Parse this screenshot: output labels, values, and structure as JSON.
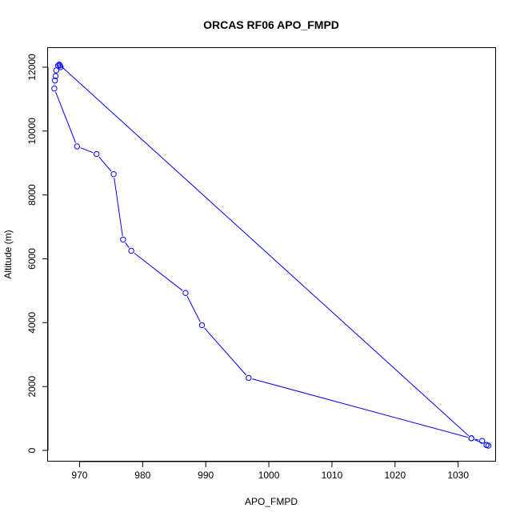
{
  "chart_data": {
    "type": "line",
    "title": "ORCAS RF06 APO_FMPD",
    "xlabel": "APO_FMPD",
    "ylabel": "Altitude (m)",
    "xlim": [
      965,
      1036
    ],
    "ylim": [
      -350,
      12600
    ],
    "xticks": [
      970,
      980,
      990,
      1000,
      1010,
      1020,
      1030
    ],
    "yticks": [
      0,
      2000,
      4000,
      6000,
      8000,
      10000,
      12000
    ],
    "xtick_labels": [
      "970",
      "980",
      "990",
      "1000",
      "1010",
      "1020",
      "1030"
    ],
    "ytick_labels": [
      "0",
      "2000",
      "4000",
      "6000",
      "8000",
      "10000",
      "12000"
    ],
    "grid": false,
    "series": [
      {
        "color": "#0000ff",
        "marker": "open-circle",
        "x": [
          1034.8,
          1034.5,
          1033.8,
          1032.1,
          996.8,
          989.4,
          986.8,
          978.2,
          976.9,
          975.4,
          972.7,
          969.6,
          966.0,
          966.1,
          966.2,
          966.3,
          966.6,
          966.9,
          967.0,
          966.8,
          1032.1,
          1034.5
        ],
        "y": [
          150,
          170,
          300,
          380,
          2270,
          3920,
          4930,
          6250,
          6600,
          8650,
          9280,
          9520,
          11330,
          11580,
          11720,
          11900,
          12050,
          12050,
          12000,
          12080,
          380,
          170
        ]
      }
    ]
  }
}
